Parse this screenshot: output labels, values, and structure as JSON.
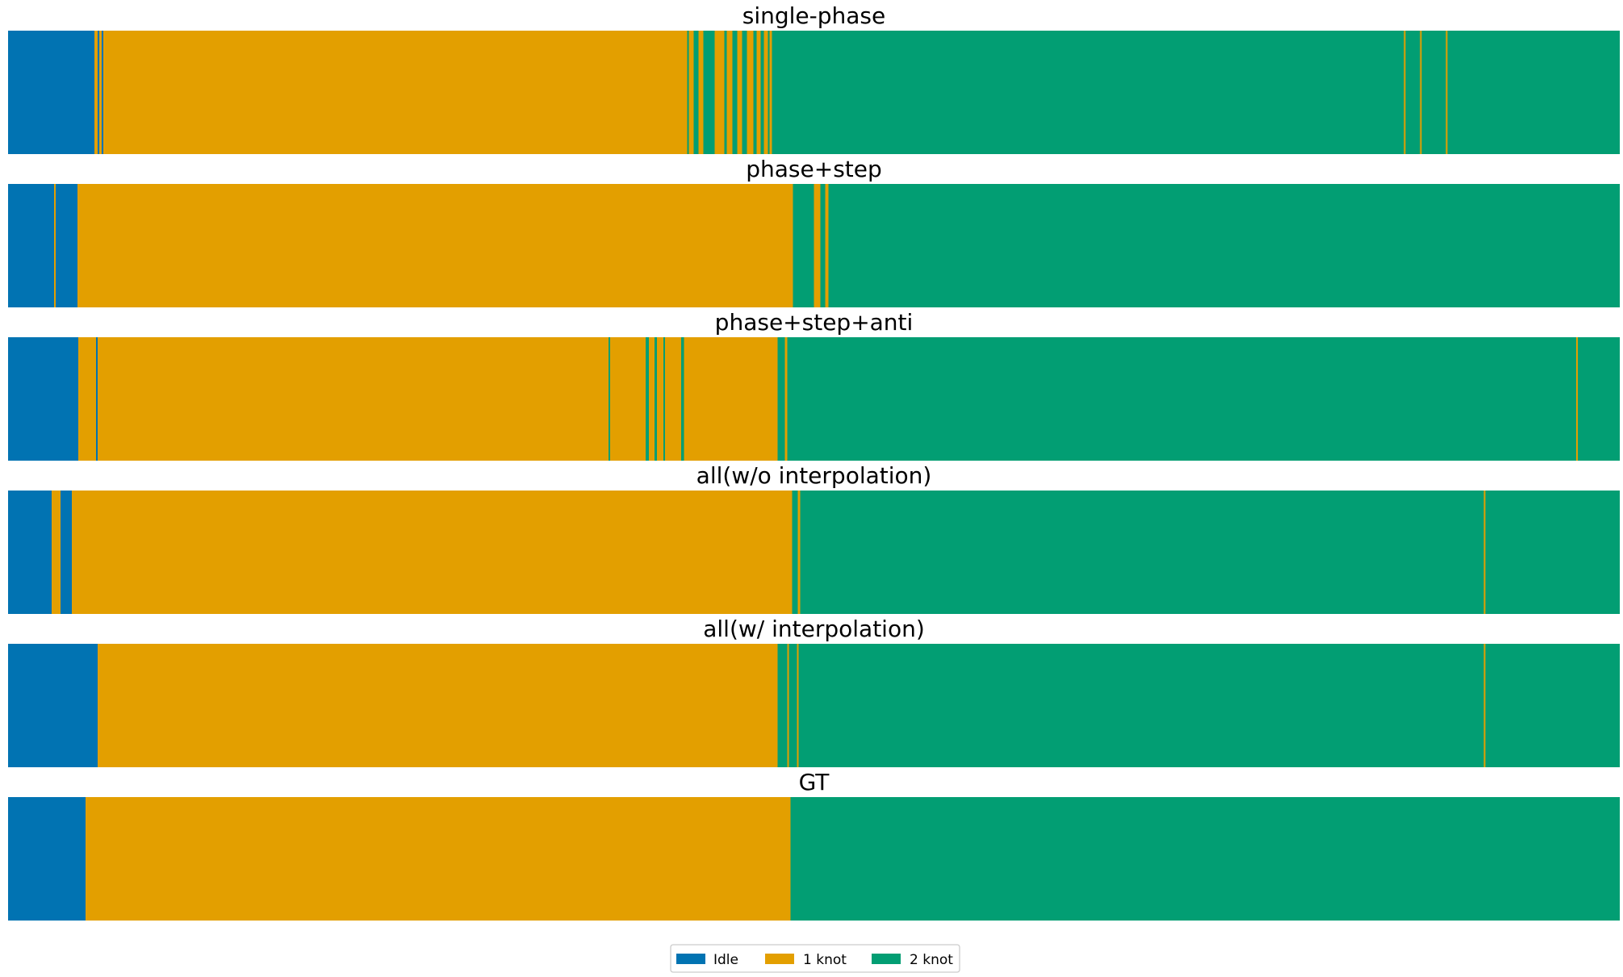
{
  "chart_data": {
    "type": "segmentation-timeline",
    "x_unit": "fraction of sequence (0-1)",
    "classes": [
      {
        "name": "Idle",
        "color": "#0173b2"
      },
      {
        "name": "1 knot",
        "color": "#e39f00"
      },
      {
        "name": "2 knot",
        "color": "#029e73"
      }
    ],
    "legend": {
      "placement": "bottom-center",
      "ncol": 3
    },
    "panels": [
      {
        "title": "single-phase",
        "segments": [
          {
            "start": 0.0,
            "end": 0.0535,
            "label": "Idle"
          },
          {
            "start": 0.0535,
            "end": 0.0555,
            "label": "1 knot"
          },
          {
            "start": 0.0555,
            "end": 0.0565,
            "label": "Idle"
          },
          {
            "start": 0.0565,
            "end": 0.058,
            "label": "1 knot"
          },
          {
            "start": 0.058,
            "end": 0.059,
            "label": "Idle"
          },
          {
            "start": 0.059,
            "end": 0.4215,
            "label": "1 knot"
          },
          {
            "start": 0.4215,
            "end": 0.4225,
            "label": "2 knot"
          },
          {
            "start": 0.4225,
            "end": 0.4255,
            "label": "1 knot"
          },
          {
            "start": 0.4255,
            "end": 0.4285,
            "label": "2 knot"
          },
          {
            "start": 0.4285,
            "end": 0.4315,
            "label": "1 knot"
          },
          {
            "start": 0.4315,
            "end": 0.4385,
            "label": "2 knot"
          },
          {
            "start": 0.4385,
            "end": 0.4445,
            "label": "1 knot"
          },
          {
            "start": 0.4445,
            "end": 0.446,
            "label": "2 knot"
          },
          {
            "start": 0.446,
            "end": 0.4495,
            "label": "1 knot"
          },
          {
            "start": 0.4495,
            "end": 0.4525,
            "label": "2 knot"
          },
          {
            "start": 0.4525,
            "end": 0.4555,
            "label": "1 knot"
          },
          {
            "start": 0.4555,
            "end": 0.4585,
            "label": "2 knot"
          },
          {
            "start": 0.4585,
            "end": 0.4625,
            "label": "1 knot"
          },
          {
            "start": 0.4625,
            "end": 0.4645,
            "label": "2 knot"
          },
          {
            "start": 0.4645,
            "end": 0.467,
            "label": "1 knot"
          },
          {
            "start": 0.467,
            "end": 0.469,
            "label": "2 knot"
          },
          {
            "start": 0.469,
            "end": 0.4715,
            "label": "1 knot"
          },
          {
            "start": 0.4715,
            "end": 0.4725,
            "label": "2 knot"
          },
          {
            "start": 0.4725,
            "end": 0.474,
            "label": "1 knot"
          },
          {
            "start": 0.474,
            "end": 0.866,
            "label": "2 knot"
          },
          {
            "start": 0.866,
            "end": 0.867,
            "label": "1 knot"
          },
          {
            "start": 0.867,
            "end": 0.876,
            "label": "2 knot"
          },
          {
            "start": 0.876,
            "end": 0.877,
            "label": "1 knot"
          },
          {
            "start": 0.877,
            "end": 0.892,
            "label": "2 knot"
          },
          {
            "start": 0.892,
            "end": 0.893,
            "label": "1 knot"
          },
          {
            "start": 0.893,
            "end": 1.0,
            "label": "2 knot"
          }
        ]
      },
      {
        "title": "phase+step",
        "segments": [
          {
            "start": 0.0,
            "end": 0.0285,
            "label": "Idle"
          },
          {
            "start": 0.0285,
            "end": 0.0295,
            "label": "1 knot"
          },
          {
            "start": 0.0295,
            "end": 0.043,
            "label": "Idle"
          },
          {
            "start": 0.043,
            "end": 0.487,
            "label": "1 knot"
          },
          {
            "start": 0.487,
            "end": 0.5,
            "label": "2 knot"
          },
          {
            "start": 0.5,
            "end": 0.504,
            "label": "1 knot"
          },
          {
            "start": 0.504,
            "end": 0.507,
            "label": "2 knot"
          },
          {
            "start": 0.507,
            "end": 0.509,
            "label": "1 knot"
          },
          {
            "start": 0.509,
            "end": 1.0,
            "label": "2 knot"
          }
        ]
      },
      {
        "title": "phase+step+anti",
        "segments": [
          {
            "start": 0.0,
            "end": 0.0435,
            "label": "Idle"
          },
          {
            "start": 0.0435,
            "end": 0.0545,
            "label": "1 knot"
          },
          {
            "start": 0.0545,
            "end": 0.0555,
            "label": "Idle"
          },
          {
            "start": 0.0555,
            "end": 0.3725,
            "label": "1 knot"
          },
          {
            "start": 0.3725,
            "end": 0.3735,
            "label": "2 knot"
          },
          {
            "start": 0.3735,
            "end": 0.3955,
            "label": "1 knot"
          },
          {
            "start": 0.3955,
            "end": 0.3975,
            "label": "2 knot"
          },
          {
            "start": 0.3975,
            "end": 0.401,
            "label": "1 knot"
          },
          {
            "start": 0.401,
            "end": 0.4025,
            "label": "2 knot"
          },
          {
            "start": 0.4025,
            "end": 0.4065,
            "label": "1 knot"
          },
          {
            "start": 0.4065,
            "end": 0.4075,
            "label": "2 knot"
          },
          {
            "start": 0.4075,
            "end": 0.4175,
            "label": "1 knot"
          },
          {
            "start": 0.4175,
            "end": 0.4195,
            "label": "2 knot"
          },
          {
            "start": 0.4195,
            "end": 0.4775,
            "label": "1 knot"
          },
          {
            "start": 0.4775,
            "end": 0.482,
            "label": "2 knot"
          },
          {
            "start": 0.482,
            "end": 0.4835,
            "label": "1 knot"
          },
          {
            "start": 0.4835,
            "end": 0.973,
            "label": "2 knot"
          },
          {
            "start": 0.973,
            "end": 0.974,
            "label": "1 knot"
          },
          {
            "start": 0.974,
            "end": 1.0,
            "label": "2 knot"
          }
        ]
      },
      {
        "title": "all(w/o interpolation)",
        "segments": [
          {
            "start": 0.0,
            "end": 0.027,
            "label": "Idle"
          },
          {
            "start": 0.027,
            "end": 0.0325,
            "label": "1 knot"
          },
          {
            "start": 0.0325,
            "end": 0.0395,
            "label": "Idle"
          },
          {
            "start": 0.0395,
            "end": 0.4865,
            "label": "1 knot"
          },
          {
            "start": 0.4865,
            "end": 0.49,
            "label": "2 knot"
          },
          {
            "start": 0.49,
            "end": 0.4915,
            "label": "1 knot"
          },
          {
            "start": 0.4915,
            "end": 0.9155,
            "label": "2 knot"
          },
          {
            "start": 0.9155,
            "end": 0.9165,
            "label": "1 knot"
          },
          {
            "start": 0.9165,
            "end": 1.0,
            "label": "2 knot"
          }
        ]
      },
      {
        "title": "all(w/ interpolation)",
        "segments": [
          {
            "start": 0.0,
            "end": 0.0555,
            "label": "Idle"
          },
          {
            "start": 0.0555,
            "end": 0.4775,
            "label": "1 knot"
          },
          {
            "start": 0.4775,
            "end": 0.4835,
            "label": "2 knot"
          },
          {
            "start": 0.4835,
            "end": 0.4845,
            "label": "1 knot"
          },
          {
            "start": 0.4845,
            "end": 0.4895,
            "label": "2 knot"
          },
          {
            "start": 0.4895,
            "end": 0.4905,
            "label": "1 knot"
          },
          {
            "start": 0.4905,
            "end": 0.9155,
            "label": "2 knot"
          },
          {
            "start": 0.9155,
            "end": 0.9165,
            "label": "1 knot"
          },
          {
            "start": 0.9165,
            "end": 1.0,
            "label": "2 knot"
          }
        ]
      },
      {
        "title": "GT",
        "segments": [
          {
            "start": 0.0,
            "end": 0.048,
            "label": "Idle"
          },
          {
            "start": 0.048,
            "end": 0.4855,
            "label": "1 knot"
          },
          {
            "start": 0.4855,
            "end": 1.0,
            "label": "2 knot"
          }
        ]
      }
    ]
  }
}
